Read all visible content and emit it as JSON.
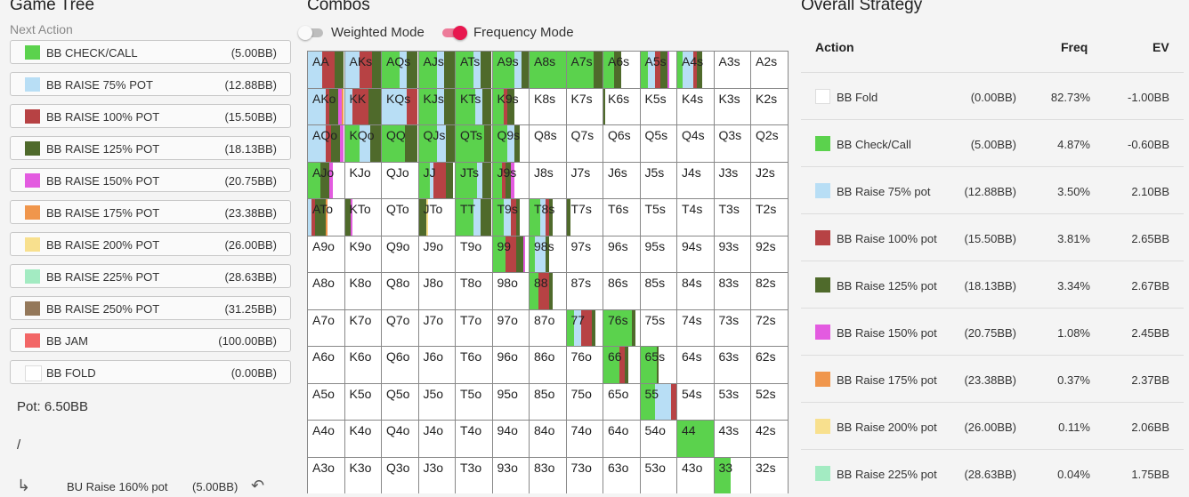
{
  "game_tree": {
    "title": "Game Tree",
    "next_action_label": "Next Action",
    "actions": [
      {
        "label": "BB CHECK/CALL",
        "amount": "(5.00BB)",
        "color": "#5bd24d"
      },
      {
        "label": "BB RAISE 75% POT",
        "amount": "(12.88BB)",
        "color": "#b8def5"
      },
      {
        "label": "BB RAISE 100% POT",
        "amount": "(15.50BB)",
        "color": "#b74244"
      },
      {
        "label": "BB RAISE 125% POT",
        "amount": "(18.13BB)",
        "color": "#4f6a2b"
      },
      {
        "label": "BB RAISE 150% POT",
        "amount": "(20.75BB)",
        "color": "#e35be0"
      },
      {
        "label": "BB RAISE 175% POT",
        "amount": "(23.38BB)",
        "color": "#f0964c"
      },
      {
        "label": "BB RAISE 200% POT",
        "amount": "(26.00BB)",
        "color": "#f8e08e"
      },
      {
        "label": "BB RAISE 225% POT",
        "amount": "(28.63BB)",
        "color": "#a3ebc2"
      },
      {
        "label": "BB RAISE 250% POT",
        "amount": "(31.25BB)",
        "color": "#94785a"
      },
      {
        "label": "BB JAM",
        "amount": "(100.00BB)",
        "color": "#f26666"
      },
      {
        "label": "BB FOLD",
        "amount": "(0.00BB)",
        "color": "#ffffff"
      }
    ],
    "pot": "Pot: 6.50BB",
    "separator": "/",
    "history": {
      "arrow_icon": "return-arrow-icon",
      "label": "BU Raise 160% pot",
      "amount": "(5.00BB)",
      "undo_icon": "undo-icon"
    }
  },
  "combos": {
    "title": "Combos",
    "weighted_mode_label": "Weighted Mode",
    "weighted_mode_on": false,
    "frequency_mode_label": "Frequency Mode",
    "frequency_mode_on": true,
    "toggle_accent": "#e8174f",
    "grid": [
      {
        "hand": "AA",
        "mix": {
          "3": 0.25,
          "2": 0.35,
          "1": 0.4
        }
      },
      {
        "hand": "AKs",
        "mix": {
          "3": 0.25,
          "2": 0.35,
          "1": 0.4
        }
      },
      {
        "hand": "AQs",
        "mix": {
          "3": 0.3,
          "1": 0.2,
          "0": 0.5
        }
      },
      {
        "hand": "AJs",
        "mix": {
          "3": 0.3,
          "1": 0.2,
          "0": 0.5
        }
      },
      {
        "hand": "ATs",
        "mix": {
          "3": 0.3,
          "1": 0.2,
          "0": 0.5
        }
      },
      {
        "hand": "A9s",
        "mix": {
          "3": 0.2,
          "1": 0.2,
          "0": 0.6
        }
      },
      {
        "hand": "A8s",
        "mix": {
          "0": 1.0
        }
      },
      {
        "hand": "A7s",
        "mix": {
          "3": 0.25,
          "0": 0.75
        }
      },
      {
        "hand": "A6s",
        "mix": {
          "3": 0.2,
          "0": 0.3
        }
      },
      {
        "hand": "A5s",
        "mix": {
          "3": 0.2,
          "2": 0.15,
          "4": 0.05,
          "1": 0.2,
          "0": 0.2
        }
      },
      {
        "hand": "A4s",
        "mix": {
          "3": 0.15,
          "2": 0.1,
          "1": 0.3,
          "0": 0.15
        }
      },
      {
        "hand": "A3s",
        "mix": {}
      },
      {
        "hand": "A2s",
        "mix": {}
      },
      {
        "hand": "AKo",
        "mix": {
          "5": 0.05,
          "4": 0.1,
          "2": 0.1,
          "3": 0.25,
          "1": 0.5
        }
      },
      {
        "hand": "KK",
        "mix": {
          "3": 0.35,
          "2": 0.45,
          "1": 0.2
        }
      },
      {
        "hand": "KQs",
        "mix": {
          "2": 0.3,
          "1": 0.7
        }
      },
      {
        "hand": "KJs",
        "mix": {
          "3": 0.3,
          "1": 0.2,
          "0": 0.5
        }
      },
      {
        "hand": "KTs",
        "mix": {
          "3": 0.25,
          "1": 0.2,
          "0": 0.55
        }
      },
      {
        "hand": "K9s",
        "mix": {
          "3": 0.2,
          "2": 0.1,
          "0": 0.3
        }
      },
      {
        "hand": "K8s",
        "mix": {}
      },
      {
        "hand": "K7s",
        "mix": {}
      },
      {
        "hand": "K6s",
        "mix": {
          "3": 0.05
        }
      },
      {
        "hand": "K5s",
        "mix": {}
      },
      {
        "hand": "K4s",
        "mix": {}
      },
      {
        "hand": "K3s",
        "mix": {}
      },
      {
        "hand": "K2s",
        "mix": {}
      },
      {
        "hand": "AQo",
        "mix": {
          "4": 0.1,
          "2": 0.15,
          "3": 0.25,
          "1": 0.5
        }
      },
      {
        "hand": "KQo",
        "mix": {
          "3": 0.3,
          "1": 0.3,
          "0": 0.4
        }
      },
      {
        "hand": "QQ",
        "mix": {
          "3": 0.35,
          "0": 0.65
        }
      },
      {
        "hand": "QJs",
        "mix": {
          "3": 0.25,
          "1": 0.25,
          "0": 0.5
        }
      },
      {
        "hand": "QTs",
        "mix": {
          "3": 0.2,
          "0": 0.8
        }
      },
      {
        "hand": "Q9s",
        "mix": {
          "3": 0.15,
          "1": 0.2,
          "0": 0.4
        }
      },
      {
        "hand": "Q8s",
        "mix": {}
      },
      {
        "hand": "Q7s",
        "mix": {}
      },
      {
        "hand": "Q6s",
        "mix": {}
      },
      {
        "hand": "Q5s",
        "mix": {}
      },
      {
        "hand": "Q4s",
        "mix": {}
      },
      {
        "hand": "Q3s",
        "mix": {}
      },
      {
        "hand": "Q2s",
        "mix": {}
      },
      {
        "hand": "AJo",
        "mix": {
          "4": 0.1,
          "3": 0.25,
          "0": 0.35
        }
      },
      {
        "hand": "KJo",
        "mix": {}
      },
      {
        "hand": "QJo",
        "mix": {}
      },
      {
        "hand": "JJ",
        "mix": {
          "3": 0.2,
          "2": 0.35,
          "1": 0.1,
          "0": 0.3
        }
      },
      {
        "hand": "JTs",
        "mix": {
          "3": 0.25,
          "1": 0.15,
          "0": 0.6
        }
      },
      {
        "hand": "J9s",
        "mix": {
          "4": 0.1,
          "3": 0.15,
          "2": 0.1,
          "0": 0.25
        }
      },
      {
        "hand": "J8s",
        "mix": {}
      },
      {
        "hand": "J7s",
        "mix": {}
      },
      {
        "hand": "J6s",
        "mix": {}
      },
      {
        "hand": "J5s",
        "mix": {}
      },
      {
        "hand": "J4s",
        "mix": {}
      },
      {
        "hand": "J3s",
        "mix": {}
      },
      {
        "hand": "J2s",
        "mix": {}
      },
      {
        "hand": "ATo",
        "mix": {
          "5": 0.05,
          "2": 0.1,
          "1": 0.1,
          "3": 0.3
        }
      },
      {
        "hand": "KTo",
        "mix": {
          "3": 0.15,
          "4": 0.05
        }
      },
      {
        "hand": "QTo",
        "mix": {}
      },
      {
        "hand": "JTo",
        "mix": {
          "6": 0.05,
          "3": 0.2
        }
      },
      {
        "hand": "TT",
        "mix": {
          "3": 0.3,
          "1": 0.2,
          "0": 0.5
        }
      },
      {
        "hand": "T9s",
        "mix": {
          "3": 0.1,
          "2": 0.15,
          "1": 0.2,
          "0": 0.3
        }
      },
      {
        "hand": "T8s",
        "mix": {
          "3": 0.1,
          "2": 0.1,
          "1": 0.15,
          "0": 0.3
        }
      },
      {
        "hand": "T7s",
        "mix": {
          "3": 0.1
        }
      },
      {
        "hand": "T6s",
        "mix": {}
      },
      {
        "hand": "T5s",
        "mix": {}
      },
      {
        "hand": "T4s",
        "mix": {}
      },
      {
        "hand": "T3s",
        "mix": {}
      },
      {
        "hand": "T2s",
        "mix": {}
      },
      {
        "hand": "A9o",
        "mix": {}
      },
      {
        "hand": "K9o",
        "mix": {}
      },
      {
        "hand": "Q9o",
        "mix": {}
      },
      {
        "hand": "J9o",
        "mix": {}
      },
      {
        "hand": "T9o",
        "mix": {}
      },
      {
        "hand": "99",
        "mix": {
          "4": 0.05,
          "3": 0.2,
          "2": 0.3,
          "0": 0.35
        }
      },
      {
        "hand": "98s",
        "mix": {
          "3": 0.1,
          "1": 0.3,
          "0": 0.15
        }
      },
      {
        "hand": "97s",
        "mix": {}
      },
      {
        "hand": "96s",
        "mix": {}
      },
      {
        "hand": "95s",
        "mix": {}
      },
      {
        "hand": "94s",
        "mix": {}
      },
      {
        "hand": "93s",
        "mix": {}
      },
      {
        "hand": "92s",
        "mix": {}
      },
      {
        "hand": "A8o",
        "mix": {}
      },
      {
        "hand": "K8o",
        "mix": {}
      },
      {
        "hand": "Q8o",
        "mix": {}
      },
      {
        "hand": "J8o",
        "mix": {}
      },
      {
        "hand": "T8o",
        "mix": {}
      },
      {
        "hand": "98o",
        "mix": {}
      },
      {
        "hand": "88",
        "mix": {
          "3": 0.1,
          "2": 0.3,
          "0": 0.25
        }
      },
      {
        "hand": "87s",
        "mix": {}
      },
      {
        "hand": "86s",
        "mix": {}
      },
      {
        "hand": "85s",
        "mix": {}
      },
      {
        "hand": "84s",
        "mix": {}
      },
      {
        "hand": "83s",
        "mix": {}
      },
      {
        "hand": "82s",
        "mix": {}
      },
      {
        "hand": "A7o",
        "mix": {}
      },
      {
        "hand": "K7o",
        "mix": {}
      },
      {
        "hand": "Q7o",
        "mix": {}
      },
      {
        "hand": "J7o",
        "mix": {}
      },
      {
        "hand": "T7o",
        "mix": {}
      },
      {
        "hand": "97o",
        "mix": {}
      },
      {
        "hand": "87o",
        "mix": {}
      },
      {
        "hand": "77",
        "mix": {
          "3": 0.1,
          "2": 0.3,
          "1": 0.2,
          "0": 0.2
        }
      },
      {
        "hand": "76s",
        "mix": {
          "3": 0.1,
          "0": 0.8
        }
      },
      {
        "hand": "75s",
        "mix": {}
      },
      {
        "hand": "74s",
        "mix": {}
      },
      {
        "hand": "73s",
        "mix": {}
      },
      {
        "hand": "72s",
        "mix": {}
      },
      {
        "hand": "A6o",
        "mix": {}
      },
      {
        "hand": "K6o",
        "mix": {}
      },
      {
        "hand": "Q6o",
        "mix": {}
      },
      {
        "hand": "J6o",
        "mix": {}
      },
      {
        "hand": "T6o",
        "mix": {}
      },
      {
        "hand": "96o",
        "mix": {}
      },
      {
        "hand": "86o",
        "mix": {}
      },
      {
        "hand": "76o",
        "mix": {}
      },
      {
        "hand": "66",
        "mix": {
          "3": 0.1,
          "2": 0.15,
          "0": 0.45
        }
      },
      {
        "hand": "65s",
        "mix": {
          "3": 0.05,
          "0": 0.45
        }
      },
      {
        "hand": "64s",
        "mix": {}
      },
      {
        "hand": "63s",
        "mix": {}
      },
      {
        "hand": "62s",
        "mix": {}
      },
      {
        "hand": "A5o",
        "mix": {}
      },
      {
        "hand": "K5o",
        "mix": {}
      },
      {
        "hand": "Q5o",
        "mix": {}
      },
      {
        "hand": "J5o",
        "mix": {}
      },
      {
        "hand": "T5o",
        "mix": {}
      },
      {
        "hand": "95o",
        "mix": {}
      },
      {
        "hand": "85o",
        "mix": {}
      },
      {
        "hand": "75o",
        "mix": {}
      },
      {
        "hand": "65o",
        "mix": {}
      },
      {
        "hand": "55",
        "mix": {
          "2": 0.15,
          "1": 0.45,
          "0": 0.4
        }
      },
      {
        "hand": "54s",
        "mix": {}
      },
      {
        "hand": "53s",
        "mix": {}
      },
      {
        "hand": "52s",
        "mix": {}
      },
      {
        "hand": "A4o",
        "mix": {}
      },
      {
        "hand": "K4o",
        "mix": {}
      },
      {
        "hand": "Q4o",
        "mix": {}
      },
      {
        "hand": "J4o",
        "mix": {}
      },
      {
        "hand": "T4o",
        "mix": {}
      },
      {
        "hand": "94o",
        "mix": {}
      },
      {
        "hand": "84o",
        "mix": {}
      },
      {
        "hand": "74o",
        "mix": {}
      },
      {
        "hand": "64o",
        "mix": {}
      },
      {
        "hand": "54o",
        "mix": {}
      },
      {
        "hand": "44",
        "mix": {
          "0": 1.0
        }
      },
      {
        "hand": "43s",
        "mix": {}
      },
      {
        "hand": "42s",
        "mix": {}
      },
      {
        "hand": "A3o",
        "mix": {}
      },
      {
        "hand": "K3o",
        "mix": {}
      },
      {
        "hand": "Q3o",
        "mix": {}
      },
      {
        "hand": "J3o",
        "mix": {}
      },
      {
        "hand": "T3o",
        "mix": {}
      },
      {
        "hand": "93o",
        "mix": {}
      },
      {
        "hand": "83o",
        "mix": {}
      },
      {
        "hand": "73o",
        "mix": {}
      },
      {
        "hand": "63o",
        "mix": {}
      },
      {
        "hand": "53o",
        "mix": {}
      },
      {
        "hand": "43o",
        "mix": {}
      },
      {
        "hand": "33",
        "mix": {
          "0": 0.45
        }
      },
      {
        "hand": "32s",
        "mix": {}
      }
    ]
  },
  "overall_strategy": {
    "title": "Overall Strategy",
    "columns": {
      "action": "Action",
      "freq": "Freq",
      "ev": "EV"
    },
    "rows": [
      {
        "name": "BB Fold",
        "amount": "(0.00BB)",
        "freq": "82.73%",
        "ev": "-1.00BB",
        "color": "#ffffff"
      },
      {
        "name": "BB Check/Call",
        "amount": "(5.00BB)",
        "freq": "4.87%",
        "ev": "-0.60BB",
        "color": "#5bd24d"
      },
      {
        "name": "BB Raise 75% pot",
        "amount": "(12.88BB)",
        "freq": "3.50%",
        "ev": "2.10BB",
        "color": "#b8def5"
      },
      {
        "name": "BB Raise 100% pot",
        "amount": "(15.50BB)",
        "freq": "3.81%",
        "ev": "2.65BB",
        "color": "#b74244"
      },
      {
        "name": "BB Raise 125% pot",
        "amount": "(18.13BB)",
        "freq": "3.34%",
        "ev": "2.67BB",
        "color": "#4f6a2b"
      },
      {
        "name": "BB Raise 150% pot",
        "amount": "(20.75BB)",
        "freq": "1.08%",
        "ev": "2.45BB",
        "color": "#e35be0"
      },
      {
        "name": "BB Raise 175% pot",
        "amount": "(23.38BB)",
        "freq": "0.37%",
        "ev": "2.37BB",
        "color": "#f0964c"
      },
      {
        "name": "BB Raise 200% pot",
        "amount": "(26.00BB)",
        "freq": "0.11%",
        "ev": "2.06BB",
        "color": "#f8e08e"
      },
      {
        "name": "BB Raise 225% pot",
        "amount": "(28.63BB)",
        "freq": "0.04%",
        "ev": "1.75BB",
        "color": "#a3ebc2"
      }
    ]
  }
}
